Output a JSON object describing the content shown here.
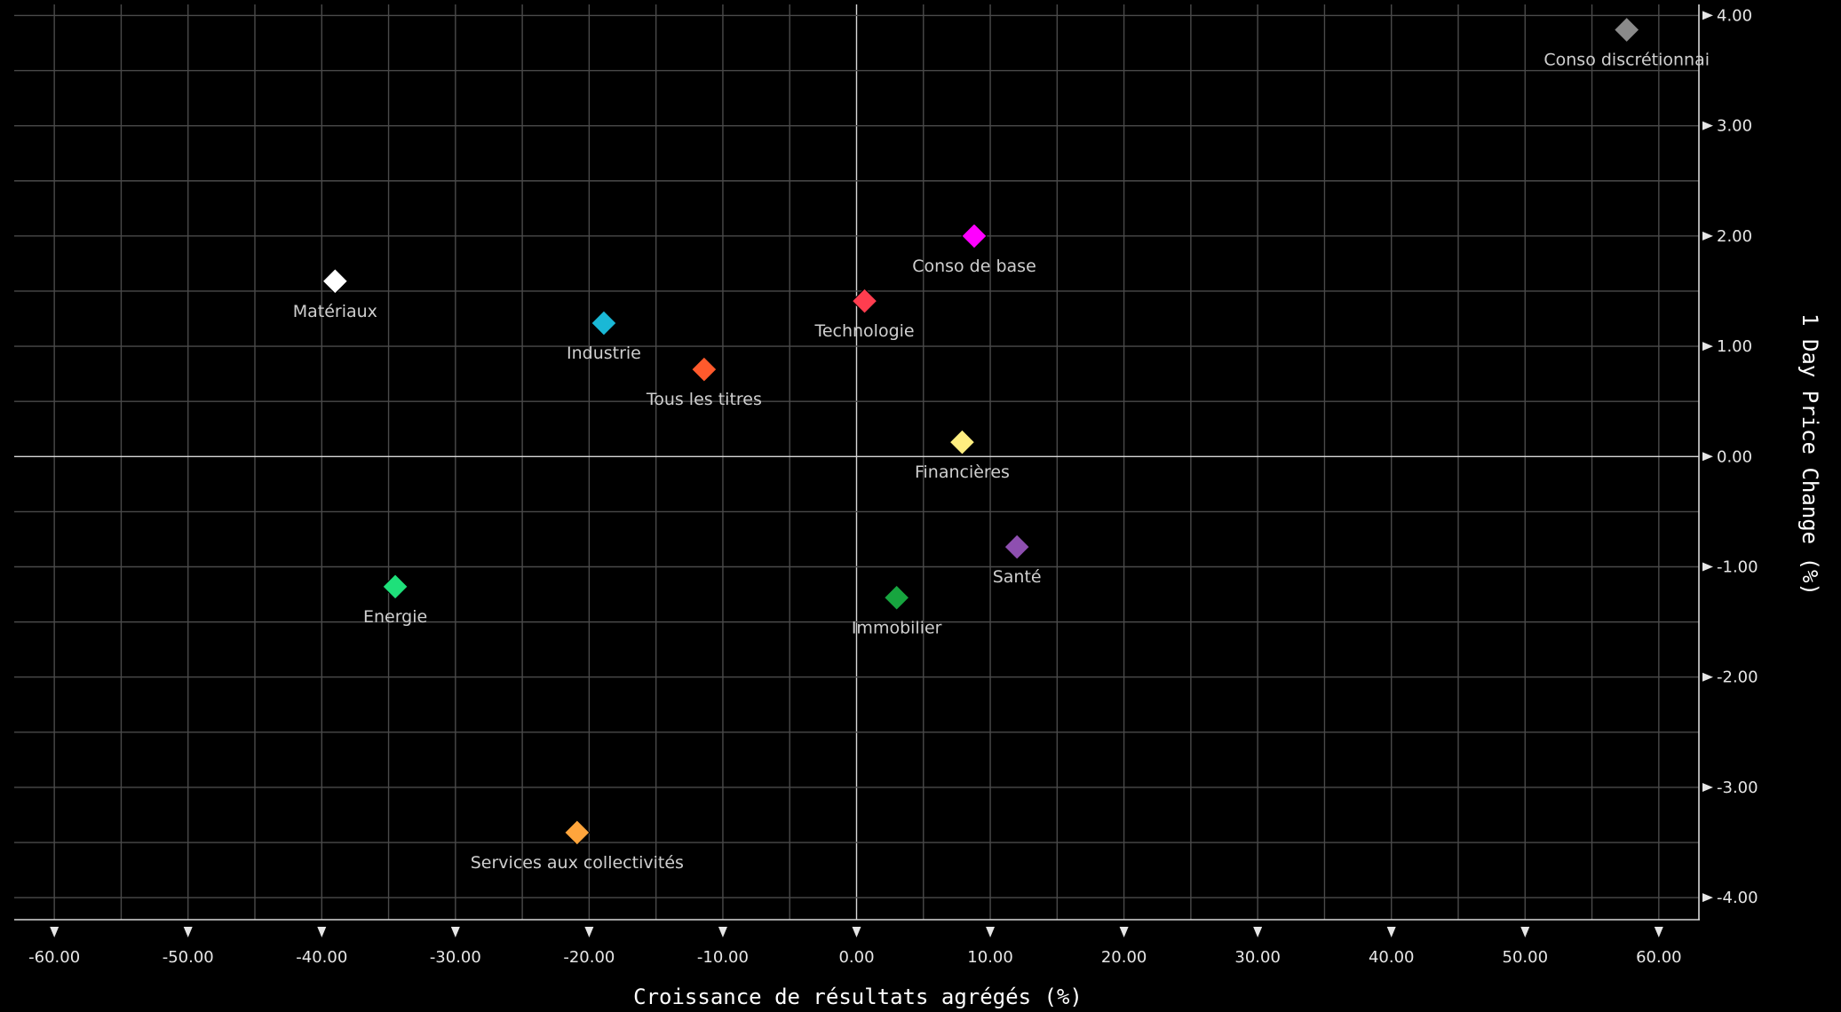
{
  "chart_data": {
    "type": "scatter",
    "xlabel": "Croissance de résultats agrégés (%)",
    "ylabel": "1 Day Price Change (%)",
    "xlim": [
      -63,
      63
    ],
    "ylim": [
      -4.2,
      4.1
    ],
    "x_ticks": [
      "-60.00",
      "-50.00",
      "-40.00",
      "-30.00",
      "-20.00",
      "-10.00",
      "0.00",
      "10.00",
      "20.00",
      "30.00",
      "40.00",
      "50.00",
      "60.00"
    ],
    "y_ticks": [
      "4.00",
      "3.00",
      "2.00",
      "1.00",
      "0.00",
      "-1.00",
      "-2.00",
      "-3.00",
      "-4.00"
    ],
    "grid": true,
    "marker": "diamond",
    "points": [
      {
        "label": "Conso discrétionnai",
        "x": 57.6,
        "y": 3.87,
        "color": "#8a8a8a"
      },
      {
        "label": "Conso de base",
        "x": 8.8,
        "y": 2.0,
        "color": "#ff00ff"
      },
      {
        "label": "Matériaux",
        "x": -39.0,
        "y": 1.59,
        "color": "#ffffff"
      },
      {
        "label": "Technologie",
        "x": 0.6,
        "y": 1.41,
        "color": "#ff3d4f"
      },
      {
        "label": "Industrie",
        "x": -18.9,
        "y": 1.21,
        "color": "#1ab8d6"
      },
      {
        "label": "Tous les titres",
        "x": -11.4,
        "y": 0.79,
        "color": "#ff5a2c"
      },
      {
        "label": "Financières",
        "x": 7.9,
        "y": 0.13,
        "color": "#ffee80"
      },
      {
        "label": "Santé",
        "x": 12.0,
        "y": -0.82,
        "color": "#8e4fb0"
      },
      {
        "label": "Energie",
        "x": -34.5,
        "y": -1.18,
        "color": "#1ee07a"
      },
      {
        "label": "Immobilier",
        "x": 3.0,
        "y": -1.28,
        "color": "#17a53f"
      },
      {
        "label": "Services aux collectivités",
        "x": -20.9,
        "y": -3.41,
        "color": "#ffa53c"
      }
    ]
  }
}
